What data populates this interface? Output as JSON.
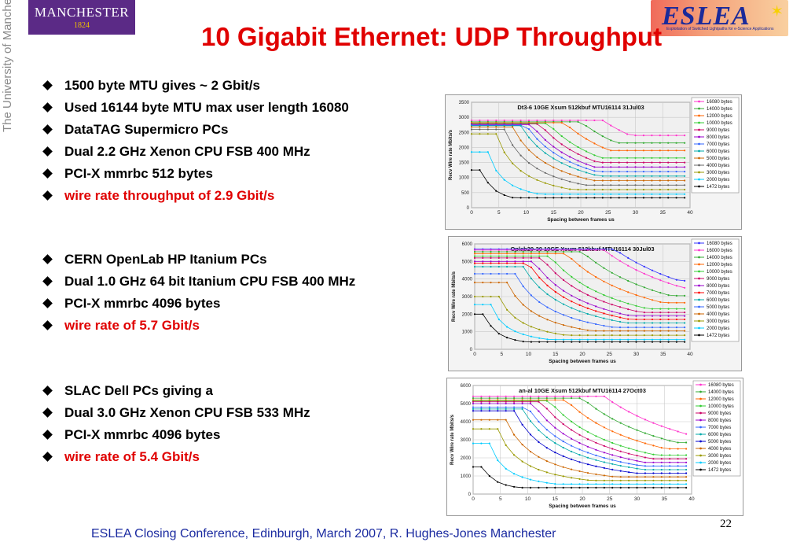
{
  "logos": {
    "manchester_line1": "MANCHESTER",
    "manchester_line2": "1824",
    "univ_vertical": "The University of Manchester",
    "eslea_text": "ESLEA",
    "eslea_sub": "Exploitation of Switched Lightpaths for e-Science Applications"
  },
  "title": "10 Gigabit Ethernet: UDP Throughput",
  "groups": [
    {
      "items": [
        {
          "text": "1500 byte MTU gives ~ 2 Gbit/s",
          "red": false
        },
        {
          "text": "Used 16144 byte MTU max user length 16080",
          "red": false
        },
        {
          "text": "DataTAG Supermicro PCs",
          "red": false
        },
        {
          "text": "Dual 2.2 GHz Xenon CPU FSB 400 MHz",
          "red": false
        },
        {
          "text": "PCI-X mmrbc 512 bytes",
          "red": false
        },
        {
          "text": "wire rate throughput of 2.9 Gbit/s",
          "red": true
        }
      ]
    },
    {
      "items": [
        {
          "text": "CERN OpenLab HP Itanium PCs",
          "red": false
        },
        {
          "text": "Dual 1.0 GHz 64 bit Itanium CPU FSB 400 MHz",
          "red": false
        },
        {
          "text": "PCI-X mmrbc 4096 bytes",
          "red": false
        },
        {
          "text": "wire rate of 5.7 Gbit/s",
          "red": true
        }
      ]
    },
    {
      "items": [
        {
          "text": "SLAC Dell PCs giving a",
          "red": false
        },
        {
          "text": "Dual 3.0 GHz Xenon CPU FSB 533 MHz",
          "red": false
        },
        {
          "text": "PCI-X mmrbc 4096 bytes",
          "red": false
        },
        {
          "text": "wire rate of 5.4 Gbit/s",
          "red": true
        }
      ]
    }
  ],
  "footer": "ESLEA Closing Conference, Edinburgh, March 2007,  R. Hughes-Jones  Manchester",
  "page_number": "22",
  "chart_data": [
    {
      "type": "line",
      "title": "Dt3-6 10GE Xsum 512kbuf MTU16114 31Jul03",
      "xlabel": "Spacing between frames us",
      "ylabel": "Recv Wire rate Mbits/s",
      "xlim": [
        0,
        40
      ],
      "ylim": [
        0,
        3500
      ],
      "xticks": [
        0,
        5,
        10,
        15,
        20,
        25,
        30,
        35,
        40
      ],
      "yticks": [
        0,
        500,
        1000,
        1500,
        2000,
        2500,
        3000,
        3500
      ],
      "grid": true,
      "legend_position": "right",
      "series": [
        {
          "name": "16080 bytes",
          "color": "#ff33cc",
          "peak": 2900,
          "knee": 24,
          "floor": 2400
        },
        {
          "name": "14000 bytes",
          "color": "#33aa33",
          "peak": 2850,
          "knee": 20,
          "floor": 2150
        },
        {
          "name": "12000 bytes",
          "color": "#ff6600",
          "peak": 2820,
          "knee": 17,
          "floor": 1900
        },
        {
          "name": "10000 bytes",
          "color": "#33cc33",
          "peak": 2800,
          "knee": 14,
          "floor": 1650
        },
        {
          "name": "9000 bytes",
          "color": "#cc0066",
          "peak": 2780,
          "knee": 12.5,
          "floor": 1500
        },
        {
          "name": "8000 bytes",
          "color": "#9900cc",
          "peak": 2760,
          "knee": 11,
          "floor": 1350
        },
        {
          "name": "7000 bytes",
          "color": "#3366ff",
          "peak": 2740,
          "knee": 10,
          "floor": 1200
        },
        {
          "name": "6000 bytes",
          "color": "#00aaaa",
          "peak": 2720,
          "knee": 9,
          "floor": 1050
        },
        {
          "name": "5000 bytes",
          "color": "#cc6600",
          "peak": 2680,
          "knee": 7.5,
          "floor": 900
        },
        {
          "name": "4000 bytes",
          "color": "#666666",
          "peak": 2600,
          "knee": 6,
          "floor": 750
        },
        {
          "name": "3000 bytes",
          "color": "#999900",
          "peak": 2450,
          "knee": 4.5,
          "floor": 600
        },
        {
          "name": "2000 bytes",
          "color": "#00ccff",
          "peak": 1850,
          "knee": 3,
          "floor": 450
        },
        {
          "name": "1472 bytes",
          "color": "#000000",
          "peak": 1250,
          "knee": 2,
          "floor": 330
        }
      ]
    },
    {
      "type": "line",
      "title": "Oplab29-30 10GE Xsum 512kbuf MTU16114 30Jul03",
      "xlabel": "Spacing between frames us",
      "ylabel": "Recv Wire rate Mbits/s",
      "xlim": [
        0,
        40
      ],
      "ylim": [
        0,
        6000
      ],
      "xticks": [
        0,
        5,
        10,
        15,
        20,
        25,
        30,
        35,
        40
      ],
      "yticks": [
        0,
        1000,
        2000,
        3000,
        4000,
        5000,
        6000
      ],
      "grid": true,
      "legend_position": "right",
      "series": [
        {
          "name": "16080 bytes",
          "color": "#3333ff",
          "peak": 5700,
          "knee": 26,
          "floor": 3900
        },
        {
          "name": "16000 bytes",
          "color": "#ff33cc",
          "peak": 5650,
          "knee": 24,
          "floor": 3500
        },
        {
          "name": "14000 bytes",
          "color": "#33aa33",
          "peak": 5550,
          "knee": 20,
          "floor": 3050
        },
        {
          "name": "12000 bytes",
          "color": "#ff6600",
          "peak": 5450,
          "knee": 17,
          "floor": 2650
        },
        {
          "name": "10000 bytes",
          "color": "#33cc33",
          "peak": 5300,
          "knee": 14,
          "floor": 2300
        },
        {
          "name": "9000 bytes",
          "color": "#cc0066",
          "peak": 5200,
          "knee": 12.5,
          "floor": 2100
        },
        {
          "name": "8000 bytes",
          "color": "#9900cc",
          "peak": 5000,
          "knee": 11,
          "floor": 1900
        },
        {
          "name": "7000 bytes",
          "color": "#ff0000",
          "peak": 4900,
          "knee": 10,
          "floor": 1700
        },
        {
          "name": "6000 bytes",
          "color": "#00aaaa",
          "peak": 4700,
          "knee": 9,
          "floor": 1500
        },
        {
          "name": "5000 bytes",
          "color": "#3366ff",
          "peak": 4300,
          "knee": 7.5,
          "floor": 1250
        },
        {
          "name": "4000 bytes",
          "color": "#cc6600",
          "peak": 3800,
          "knee": 6,
          "floor": 1050
        },
        {
          "name": "3000 bytes",
          "color": "#999900",
          "peak": 3000,
          "knee": 4.5,
          "floor": 800
        },
        {
          "name": "2000 bytes",
          "color": "#00ccff",
          "peak": 2550,
          "knee": 3,
          "floor": 550
        },
        {
          "name": "1472 bytes",
          "color": "#000000",
          "peak": 2000,
          "knee": 2,
          "floor": 420
        }
      ]
    },
    {
      "type": "line",
      "title": "an-al 10GE Xsum 512kbuf MTU16114 27Oct03",
      "xlabel": "Spacing between frames us",
      "ylabel": "Recv Wire rate Mbits/s",
      "xlim": [
        0,
        40
      ],
      "ylim": [
        0,
        6000
      ],
      "xticks": [
        0,
        5,
        10,
        15,
        20,
        25,
        30,
        35,
        40
      ],
      "yticks": [
        0,
        1000,
        2000,
        3000,
        4000,
        5000,
        6000
      ],
      "grid": true,
      "legend_position": "right",
      "series": [
        {
          "name": "16080 bytes",
          "color": "#ff33cc",
          "peak": 5400,
          "knee": 24,
          "floor": 3200
        },
        {
          "name": "14000 bytes",
          "color": "#33aa33",
          "peak": 5300,
          "knee": 20,
          "floor": 2850
        },
        {
          "name": "12000 bytes",
          "color": "#ff6600",
          "peak": 5200,
          "knee": 17,
          "floor": 2500
        },
        {
          "name": "10000 bytes",
          "color": "#33cc33",
          "peak": 5150,
          "knee": 14,
          "floor": 2150
        },
        {
          "name": "9000 bytes",
          "color": "#cc0066",
          "peak": 5100,
          "knee": 12.5,
          "floor": 1950
        },
        {
          "name": "8000 bytes",
          "color": "#9900cc",
          "peak": 5000,
          "knee": 11,
          "floor": 1750
        },
        {
          "name": "7000 bytes",
          "color": "#3366ff",
          "peak": 4800,
          "knee": 10,
          "floor": 1550
        },
        {
          "name": "6000 bytes",
          "color": "#00aaaa",
          "peak": 4700,
          "knee": 9,
          "floor": 1350
        },
        {
          "name": "5000 bytes",
          "color": "#0000cc",
          "peak": 4600,
          "knee": 7.5,
          "floor": 1150
        },
        {
          "name": "4000 bytes",
          "color": "#cc6600",
          "peak": 4100,
          "knee": 6,
          "floor": 950
        },
        {
          "name": "3000 bytes",
          "color": "#999900",
          "peak": 3600,
          "knee": 4.5,
          "floor": 750
        },
        {
          "name": "2000 bytes",
          "color": "#00ccff",
          "peak": 2800,
          "knee": 3,
          "floor": 550
        },
        {
          "name": "1472 bytes",
          "color": "#000000",
          "peak": 1500,
          "knee": 2,
          "floor": 350
        }
      ]
    }
  ]
}
